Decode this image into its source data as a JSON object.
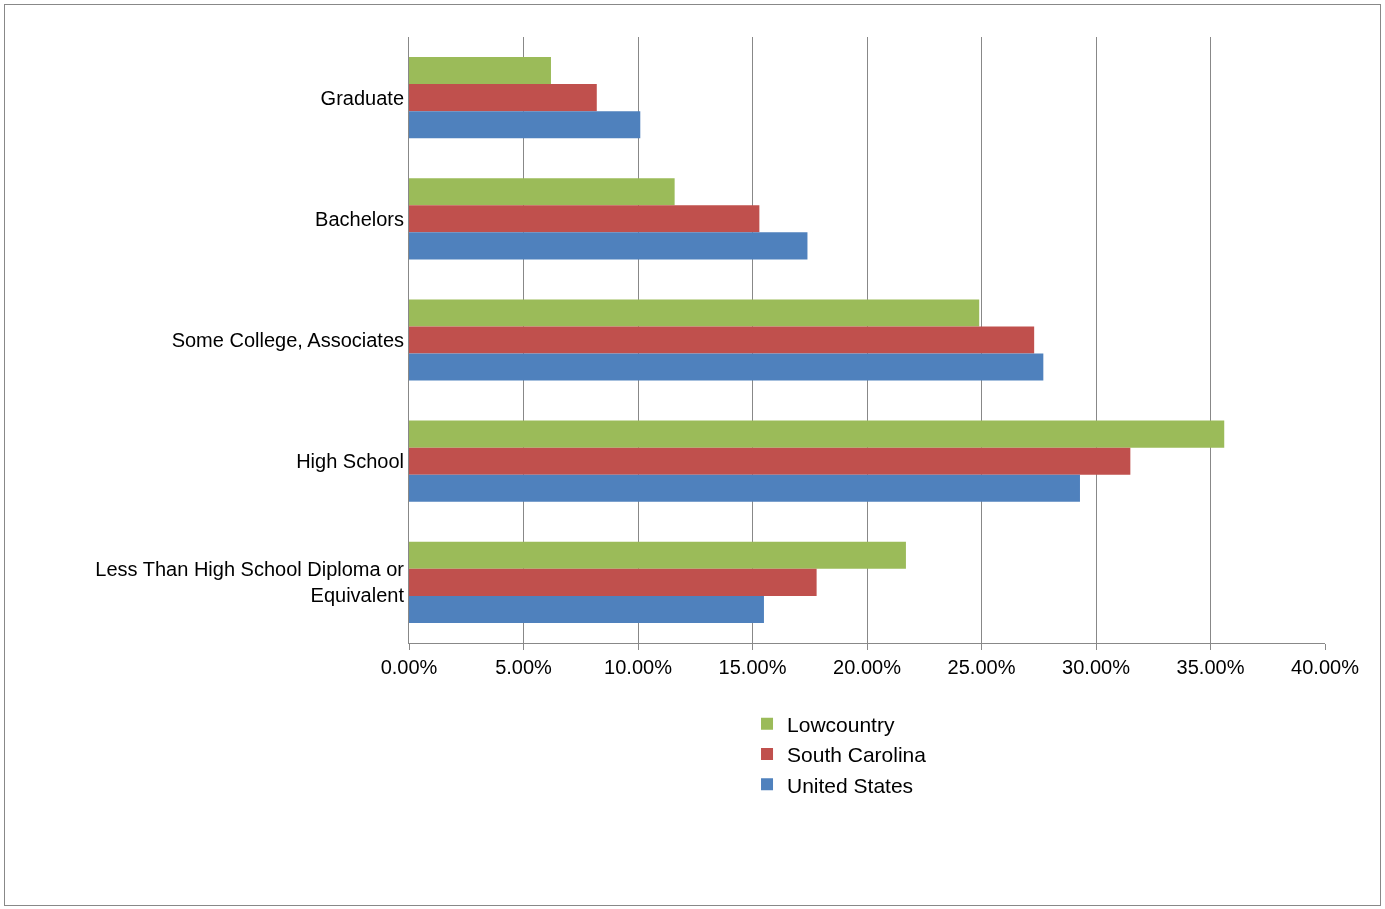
{
  "chart_data": {
    "type": "bar",
    "orientation": "horizontal",
    "categories": [
      "Graduate",
      "Bachelors",
      "Some College, Associates",
      "High School",
      "Less Than High School Diploma or Equivalent"
    ],
    "series": [
      {
        "name": "Lowcountry",
        "color": "#9bbb59",
        "values": [
          6.2,
          11.6,
          24.9,
          35.6,
          21.7
        ]
      },
      {
        "name": "South Carolina",
        "color": "#c0504d",
        "values": [
          8.2,
          15.3,
          27.3,
          31.5,
          17.8
        ]
      },
      {
        "name": "United States",
        "color": "#4f81bd",
        "values": [
          10.1,
          17.4,
          27.7,
          29.3,
          15.5
        ]
      }
    ],
    "xlim": [
      0,
      40
    ],
    "xticks": [
      {
        "value": 0,
        "label": "0.00%"
      },
      {
        "value": 5,
        "label": "5.00%"
      },
      {
        "value": 10,
        "label": "10.00%"
      },
      {
        "value": 15,
        "label": "15.00%"
      },
      {
        "value": 20,
        "label": "20.00%"
      },
      {
        "value": 25,
        "label": "25.00%"
      },
      {
        "value": 30,
        "label": "30.00%"
      },
      {
        "value": 35,
        "label": "35.00%"
      },
      {
        "value": 40,
        "label": "40.00%"
      }
    ],
    "grid": "x",
    "legend": "bottom"
  }
}
